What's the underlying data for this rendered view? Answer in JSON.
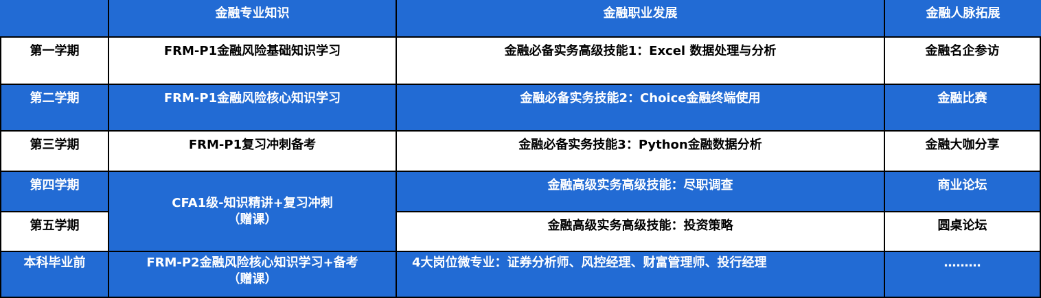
{
  "headers": [
    "",
    "金融专业知识",
    "金融职业发展",
    "金融人脉拓展"
  ],
  "rows": [
    {
      "term": "第一学期",
      "knowledge": "FRM-P1金融风险基础知识学习",
      "career": "金融必备实务高级技能1：Excel 数据处理与分析",
      "network": "金融名企参访"
    },
    {
      "term": "第二学期",
      "knowledge": "FRM-P1金融风险核心知识学习",
      "career": "金融必备实务技能2：Choice金融终端使用",
      "network": "金融比赛"
    },
    {
      "term": "第三学期",
      "knowledge": "FRM-P1复习冲刺备考",
      "career": "金融必备实务技能3：Python金融数据分析",
      "network": "金融大咖分享"
    },
    {
      "term": "第四学期",
      "knowledge": "CFA1级-知识精讲+复习冲刺",
      "knowledge_note": "（赠课）",
      "career": "金融高级实务高级技能：尽职调查",
      "network": "商业论坛"
    },
    {
      "term": "第五学期",
      "career": "金融高级实务高级技能：投资策略",
      "network": "圆桌论坛"
    },
    {
      "term": "本科毕业前",
      "knowledge": "FRM-P2金融风险核心知识学习+备考",
      "knowledge_note": "（赠课）",
      "career": "4大岗位微专业：证券分析师、风控经理、财富管理师、投行经理",
      "network": "………"
    }
  ],
  "colors": {
    "blue": "#226bd4",
    "white": "#ffffff",
    "border": "#000000"
  }
}
